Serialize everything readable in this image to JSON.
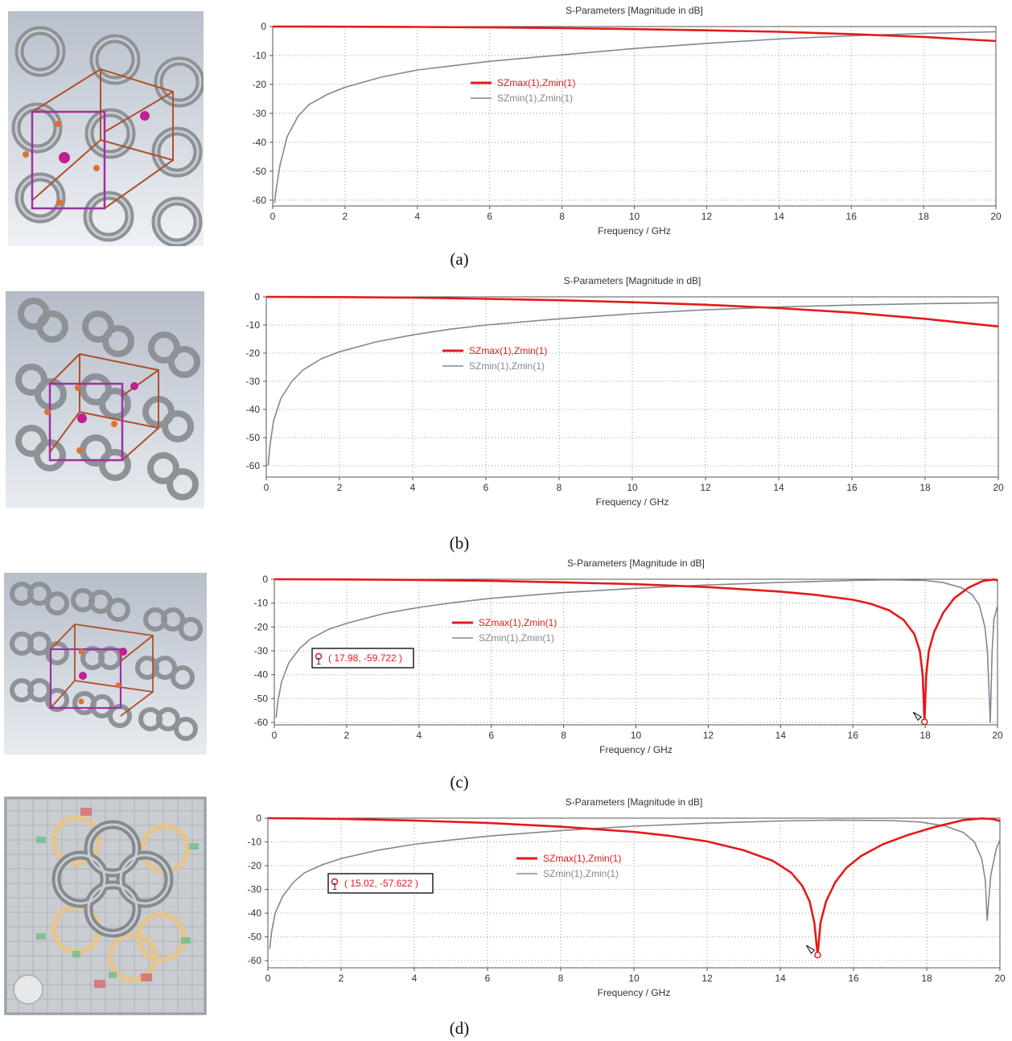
{
  "chart_data": [
    {
      "type": "line",
      "title": "S-Parameters [Magnitude in dB]",
      "xlabel": "Frequency / GHz",
      "ylabel": "",
      "xlim": [
        0,
        20
      ],
      "ylim": [
        -62,
        0
      ],
      "xticks": [
        "0",
        "2",
        "4",
        "6",
        "8",
        "10",
        "12",
        "14",
        "16",
        "18",
        "20"
      ],
      "yticks": [
        "0",
        "-10",
        "-20",
        "-30",
        "-40",
        "-50",
        "-60"
      ],
      "grid": "dotted",
      "caption": "(a)",
      "legend": [
        {
          "label": "SZmax(1),Zmin(1)",
          "color": "#e41a1c"
        },
        {
          "label": "SZmin(1),Zmin(1)",
          "color": "#808890"
        }
      ],
      "series": [
        {
          "name": "SZmax(1),Zmin(1)",
          "color": "#e41a1c",
          "x": [
            0,
            2,
            4,
            6,
            8,
            10,
            12,
            14,
            16,
            18,
            20
          ],
          "y": [
            0,
            -0.05,
            -0.15,
            -0.3,
            -0.55,
            -0.9,
            -1.3,
            -1.8,
            -2.6,
            -3.6,
            -5.0
          ]
        },
        {
          "name": "SZmin(1),Zmin(1)",
          "color": "#808890",
          "x": [
            0.05,
            0.1,
            0.2,
            0.4,
            0.7,
            1,
            1.5,
            2,
            3,
            4,
            5,
            6,
            8,
            10,
            12,
            14,
            16,
            18,
            20
          ],
          "y": [
            -61,
            -56,
            -48,
            -38,
            -31,
            -27,
            -23.5,
            -21,
            -17.5,
            -15,
            -13.5,
            -12,
            -9.8,
            -7.6,
            -5.8,
            -4.3,
            -3.2,
            -2.4,
            -1.8
          ]
        }
      ]
    },
    {
      "type": "line",
      "title": "S-Parameters [Magnitude in dB]",
      "xlabel": "Frequency / GHz",
      "ylabel": "",
      "xlim": [
        0,
        20
      ],
      "ylim": [
        -64,
        0
      ],
      "xticks": [
        "0",
        "2",
        "4",
        "6",
        "8",
        "10",
        "12",
        "14",
        "16",
        "18",
        "20"
      ],
      "yticks": [
        "0",
        "-10",
        "-20",
        "-30",
        "-40",
        "-50",
        "-60"
      ],
      "grid": "dotted",
      "caption": "(b)",
      "legend": [
        {
          "label": "SZmax(1),Zmin(1)",
          "color": "#e41a1c"
        },
        {
          "label": "SZmin(1),Zmin(1)",
          "color": "#808890"
        }
      ],
      "series": [
        {
          "name": "SZmax(1),Zmin(1)",
          "color": "#e41a1c",
          "x": [
            0,
            2,
            4,
            6,
            8,
            10,
            12,
            14,
            16,
            18,
            20
          ],
          "y": [
            0,
            -0.1,
            -0.3,
            -0.7,
            -1.2,
            -1.9,
            -2.8,
            -4.0,
            -5.6,
            -7.8,
            -10.5
          ]
        },
        {
          "name": "SZmin(1),Zmin(1)",
          "color": "#808890",
          "x": [
            0.05,
            0.1,
            0.2,
            0.4,
            0.7,
            1,
            1.5,
            2,
            3,
            4,
            5,
            6,
            8,
            10,
            12,
            14,
            16,
            18,
            20
          ],
          "y": [
            -60,
            -53,
            -44,
            -36,
            -30,
            -26,
            -22,
            -19.5,
            -16,
            -13.5,
            -11.5,
            -10,
            -7.8,
            -6.0,
            -4.6,
            -3.6,
            -2.9,
            -2.4,
            -2.1
          ]
        }
      ]
    },
    {
      "type": "line",
      "title": "S-Parameters [Magnitude in dB]",
      "xlabel": "Frequency / GHz",
      "ylabel": "",
      "xlim": [
        0,
        20
      ],
      "ylim": [
        -61,
        0
      ],
      "xticks": [
        "0",
        "2",
        "4",
        "6",
        "8",
        "10",
        "12",
        "14",
        "16",
        "18",
        "20"
      ],
      "yticks": [
        "0",
        "-10",
        "-20",
        "-30",
        "-40",
        "-50",
        "-60"
      ],
      "grid": "dotted",
      "caption": "(c)",
      "legend": [
        {
          "label": "SZmax(1),Zmin(1)",
          "color": "#e41a1c"
        },
        {
          "label": "SZmin(1),Zmin(1)",
          "color": "#808890"
        }
      ],
      "marker": {
        "label": "( 17.98, -59.722 )",
        "index": "1",
        "x": 17.98,
        "y": -59.722
      },
      "series": [
        {
          "name": "SZmax(1),Zmin(1)",
          "color": "#e41a1c",
          "x": [
            0,
            2,
            4,
            6,
            8,
            10,
            12,
            14,
            15,
            16,
            16.5,
            17,
            17.4,
            17.7,
            17.85,
            17.93,
            17.98,
            18.03,
            18.1,
            18.25,
            18.5,
            18.8,
            19.2,
            19.6,
            19.9,
            20
          ],
          "y": [
            0,
            -0.1,
            -0.3,
            -0.7,
            -1.3,
            -2.1,
            -3.3,
            -5.2,
            -6.6,
            -8.6,
            -10.3,
            -13,
            -17,
            -23,
            -30,
            -40,
            -59.7,
            -40,
            -30,
            -22,
            -14,
            -8,
            -3.5,
            -0.7,
            -0.1,
            -0.5
          ]
        },
        {
          "name": "SZmin(1),Zmin(1)",
          "color": "#808890",
          "x": [
            0.05,
            0.1,
            0.2,
            0.4,
            0.7,
            1,
            1.5,
            2,
            3,
            4,
            5,
            6,
            8,
            10,
            12,
            14,
            16,
            17,
            18,
            18.5,
            19,
            19.3,
            19.5,
            19.65,
            19.72,
            19.76,
            19.8,
            19.85,
            19.9,
            20
          ],
          "y": [
            -58,
            -51,
            -43,
            -35,
            -29,
            -25,
            -21,
            -18.5,
            -14.5,
            -11.8,
            -9.7,
            -8,
            -5.6,
            -3.8,
            -2.4,
            -1.3,
            -0.5,
            -0.25,
            -0.5,
            -1.4,
            -3.5,
            -6.5,
            -11,
            -20,
            -30,
            -45,
            -60,
            -30,
            -17,
            -11
          ]
        }
      ]
    },
    {
      "type": "line",
      "title": "S-Parameters [Magnitude in dB]",
      "xlabel": "Frequency / GHz",
      "ylabel": "",
      "xlim": [
        0,
        20
      ],
      "ylim": [
        -63,
        0
      ],
      "xticks": [
        "0",
        "2",
        "4",
        "6",
        "8",
        "10",
        "12",
        "14",
        "16",
        "18",
        "20"
      ],
      "yticks": [
        "0",
        "-10",
        "-20",
        "-30",
        "-40",
        "-50",
        "-60"
      ],
      "grid": "dotted",
      "caption": "(d)",
      "legend": [
        {
          "label": "SZmax(1),Zmin(1)",
          "color": "#e41a1c"
        },
        {
          "label": "SZmin(1),Zmin(1)",
          "color": "#808890"
        }
      ],
      "marker": {
        "label": "( 15.02, -57.622 )",
        "index": "1",
        "x": 15.02,
        "y": -57.622
      },
      "series": [
        {
          "name": "SZmax(1),Zmin(1)",
          "color": "#e41a1c",
          "x": [
            0,
            2,
            4,
            6,
            8,
            10,
            11,
            12,
            13,
            13.8,
            14.3,
            14.6,
            14.8,
            14.93,
            15.02,
            15.1,
            15.25,
            15.5,
            15.8,
            16.2,
            16.8,
            17.5,
            18.2,
            19,
            19.5,
            19.8,
            20
          ],
          "y": [
            0,
            -0.3,
            -1.0,
            -2.0,
            -3.6,
            -5.8,
            -7.5,
            -9.8,
            -13.5,
            -18,
            -23,
            -28.5,
            -35,
            -44,
            -57.6,
            -44,
            -35,
            -27,
            -21,
            -16,
            -11,
            -7,
            -3.8,
            -0.8,
            -0.1,
            -0.4,
            -1.2
          ]
        },
        {
          "name": "SZmin(1),Zmin(1)",
          "color": "#808890",
          "x": [
            0.05,
            0.1,
            0.2,
            0.4,
            0.7,
            1,
            1.5,
            2,
            3,
            4,
            5,
            6,
            8,
            10,
            12,
            14,
            15.5,
            17,
            17.8,
            18.5,
            19,
            19.3,
            19.5,
            19.6,
            19.65,
            19.75,
            19.9,
            20
          ],
          "y": [
            -55,
            -48,
            -40,
            -33,
            -27,
            -23,
            -19.5,
            -17,
            -13.5,
            -11,
            -9.2,
            -7.6,
            -5.2,
            -3.4,
            -2.1,
            -1.2,
            -0.8,
            -1.0,
            -1.6,
            -3.3,
            -6,
            -10,
            -17,
            -26,
            -43,
            -24,
            -13,
            -9
          ]
        }
      ]
    }
  ]
}
